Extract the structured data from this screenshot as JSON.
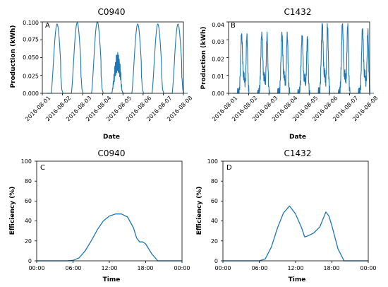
{
  "chart_data": [
    {
      "type": "line",
      "panel_label": "A",
      "title": "C0940",
      "xlabel": "Date",
      "ylabel": "Production (kWh)",
      "ylim": [
        0,
        0.1
      ],
      "yticks": [
        "0.000",
        "0.025",
        "0.050",
        "0.075",
        "0.100"
      ],
      "xticks": [
        "2016-08-01",
        "2016-08-02",
        "2016-08-03",
        "2016-08-04",
        "2016-08-05",
        "2016-08-06",
        "2016-08-07",
        "2016-08-08"
      ],
      "color": "#1f77b4",
      "daily_peak_kwh": [
        0.097,
        0.099,
        0.1,
        0.058,
        0.097,
        0.097,
        0.097
      ],
      "daily_shape": "single"
    },
    {
      "type": "line",
      "panel_label": "B",
      "title": "C1432",
      "xlabel": "Date",
      "ylabel": "Production (kWh)",
      "ylim": [
        0,
        0.042
      ],
      "yticks": [
        "0.00",
        "0.01",
        "0.02",
        "0.03",
        "0.04"
      ],
      "xticks": [
        "2016-08-01",
        "2016-08-02",
        "2016-08-03",
        "2016-08-04",
        "2016-08-05",
        "2016-08-06",
        "2016-08-07",
        "2016-08-08"
      ],
      "color": "#1f77b4",
      "daily_peak_kwh": [
        0.035,
        0.036,
        0.036,
        0.034,
        0.041,
        0.041,
        0.038
      ],
      "daily_shape": "double"
    },
    {
      "type": "line",
      "panel_label": "C",
      "title": "C0940",
      "xlabel": "Time",
      "ylabel": "Efficiency (%)",
      "ylim": [
        0,
        100
      ],
      "yticks": [
        "0",
        "20",
        "40",
        "60",
        "80",
        "100"
      ],
      "xticks": [
        "00:00",
        "06:00",
        "12:00",
        "18:00",
        "00:00"
      ],
      "color": "#1f77b4",
      "x_hours": [
        0,
        5,
        6,
        7,
        8,
        9,
        10,
        11,
        12,
        13,
        14,
        15,
        16,
        16.5,
        17,
        17.5,
        18,
        19,
        20,
        24
      ],
      "values": [
        0,
        0,
        0.5,
        3,
        10,
        20,
        31,
        40,
        45,
        47,
        47,
        44,
        33,
        23,
        19,
        19,
        17,
        7,
        0,
        0
      ]
    },
    {
      "type": "line",
      "panel_label": "D",
      "title": "C1432",
      "xlabel": "Time",
      "ylabel": "Efficiency (%)",
      "ylim": [
        0,
        100
      ],
      "yticks": [
        "0",
        "20",
        "40",
        "60",
        "80",
        "100"
      ],
      "xticks": [
        "00:00",
        "06:00",
        "12:00",
        "18:00",
        "00:00"
      ],
      "color": "#1f77b4",
      "x_hours": [
        0,
        6,
        7,
        8,
        9,
        10,
        11,
        12,
        13,
        13.5,
        14,
        15,
        16,
        17,
        17.5,
        18,
        19,
        20,
        24
      ],
      "values": [
        0,
        0,
        2,
        14,
        33,
        48,
        55,
        47,
        33,
        24,
        25,
        28,
        34,
        49,
        45,
        35,
        12,
        0,
        0
      ]
    }
  ]
}
